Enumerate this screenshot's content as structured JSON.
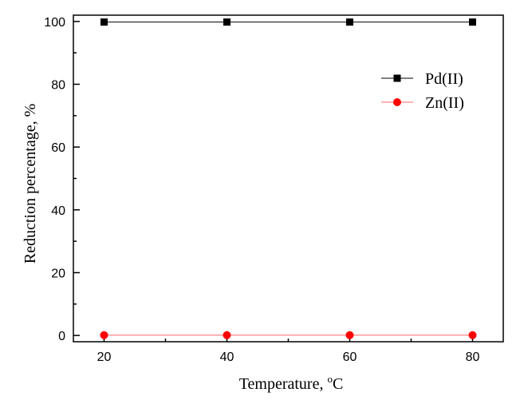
{
  "chart_data": {
    "type": "line",
    "title": "",
    "xlabel": "Temperature, ",
    "xlabel_sup": "o",
    "xlabel_unit": "C",
    "ylabel": "Reduction percentage, %",
    "xlim": [
      15,
      85
    ],
    "ylim": [
      -2,
      102
    ],
    "x": [
      20,
      40,
      60,
      80
    ],
    "xticks": [
      20,
      40,
      60,
      80
    ],
    "xticks_minor": [
      30,
      50,
      70
    ],
    "yticks": [
      0,
      20,
      40,
      60,
      80,
      100
    ],
    "yticks_minor": [
      10,
      30,
      50,
      70,
      90
    ],
    "legend_position": "top-right",
    "grid": false,
    "series": [
      {
        "name": "Pd(II)",
        "values": [
          99.8,
          99.8,
          99.8,
          99.8
        ],
        "color": "#000000",
        "marker": "square"
      },
      {
        "name": "Zn(II)",
        "values": [
          0.1,
          0.1,
          0.1,
          0.1
        ],
        "color": "#ff0000",
        "line_color": "#ff6666",
        "marker": "circle"
      }
    ]
  }
}
